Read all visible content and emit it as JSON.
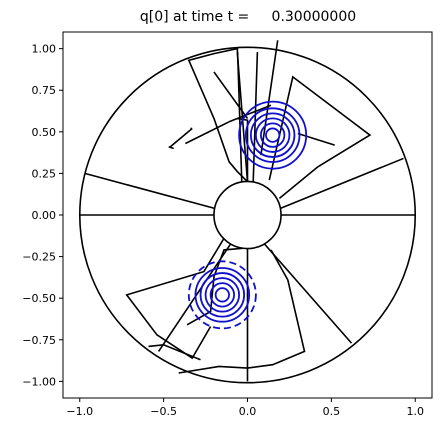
{
  "chart_data": {
    "type": "contour",
    "title": "q[0] at time t =     0.30000000",
    "xlabel": "",
    "ylabel": "",
    "xlim": [
      -1.1,
      1.1
    ],
    "ylim": [
      -1.1,
      1.1
    ],
    "grid": false,
    "x_ticks": [
      -1.0,
      -0.5,
      0.0,
      0.5,
      1.0
    ],
    "x_tick_labels": [
      "−1.0",
      "−0.5",
      "0.0",
      "0.5",
      "1.0"
    ],
    "y_ticks": [
      1.0,
      0.75,
      0.5,
      0.25,
      0.0,
      -0.25,
      -0.5,
      -0.75,
      -1.0
    ],
    "y_tick_labels": [
      "1.00",
      "0.75",
      "0.50",
      "0.25",
      "0.00",
      "−0.25",
      "−0.50",
      "−0.75",
      "−1.00"
    ],
    "annulus": {
      "inner_radius": 0.2,
      "outer_radius": 1.0
    },
    "mesh_edges": [
      {
        "from": [
          0.2,
          0.0
        ],
        "to": [
          1.0,
          0.0
        ]
      },
      {
        "from": [
          -0.2,
          0.0
        ],
        "to": [
          -1.0,
          0.0
        ]
      },
      {
        "from": [
          0.0,
          -0.2
        ],
        "to": [
          0.0,
          -1.0
        ]
      },
      {
        "from": [
          0.034,
          0.197
        ],
        "to": [
          0.059,
          0.98
        ]
      },
      {
        "from": [
          -0.034,
          0.197
        ],
        "to": [
          -0.059,
          0.98
        ]
      },
      {
        "from": [
          0.196,
          0.04
        ],
        "to": [
          0.93,
          0.34
        ]
      },
      {
        "from": [
          -0.196,
          0.04
        ],
        "to": [
          -0.97,
          0.25
        ]
      },
      {
        "from": [
          0.1,
          -0.173
        ],
        "to": [
          0.62,
          -0.77
        ]
      },
      {
        "from": [
          -0.1,
          -0.173
        ],
        "to": [
          -0.53,
          -0.82
        ]
      },
      {
        "from": [
          0.08,
          0.36
        ],
        "to": [
          0.18,
          1.05
        ]
      },
      {
        "from": [
          -0.34,
          0.52
        ],
        "to": [
          -0.33,
          0.52
        ]
      },
      {
        "from": [
          0.0,
          0.58
        ],
        "to": [
          -0.2,
          0.86
        ]
      },
      {
        "from": [
          -0.33,
          0.52
        ],
        "to": [
          -0.46,
          0.41
        ]
      },
      {
        "from": [
          -0.47,
          0.41
        ],
        "to": [
          -0.44,
          0.4
        ]
      },
      {
        "from": [
          0.3,
          0.49
        ],
        "to": [
          0.52,
          0.42
        ]
      }
    ],
    "mesh_polylines": [
      [
        [
          0.0,
          0.2
        ],
        [
          -0.06,
          0.97
        ],
        [
          -0.06,
          1.0
        ],
        [
          -0.2,
          0.97
        ],
        [
          -0.35,
          0.93
        ],
        [
          -0.2,
          0.58
        ],
        [
          -0.11,
          0.32
        ],
        [
          -0.06,
          0.26
        ],
        [
          0.0,
          0.2
        ]
      ],
      [
        [
          0.0,
          0.2
        ],
        [
          0.0,
          0.57
        ],
        [
          -0.06,
          0.58
        ]
      ],
      [
        [
          0.13,
          0.21
        ],
        [
          0.27,
          0.83
        ],
        [
          0.73,
          0.48
        ],
        [
          0.42,
          0.29
        ],
        [
          0.19,
          0.1
        ]
      ],
      [
        [
          -0.11,
          0.56
        ],
        [
          0.14,
          0.66
        ]
      ],
      [
        [
          -0.37,
          0.43
        ],
        [
          -0.11,
          0.56
        ]
      ],
      [
        [
          -0.14,
          -0.14
        ],
        [
          -0.26,
          -0.34
        ],
        [
          -0.72,
          -0.48
        ],
        [
          -0.54,
          -0.72
        ],
        [
          -0.33,
          -0.86
        ],
        [
          -0.22,
          -0.67
        ]
      ],
      [
        [
          -0.36,
          -0.66
        ],
        [
          -0.22,
          -0.58
        ],
        [
          -0.2,
          -0.37
        ],
        [
          -0.14,
          -0.21
        ],
        [
          -0.03,
          -0.2
        ]
      ],
      [
        [
          0.14,
          -0.21
        ],
        [
          0.24,
          -0.39
        ],
        [
          0.34,
          -0.82
        ],
        [
          0.15,
          -0.9
        ],
        [
          0.0,
          -0.92
        ],
        [
          -0.17,
          -0.91
        ],
        [
          -0.41,
          -0.95
        ]
      ],
      [
        [
          -0.59,
          -0.79
        ],
        [
          -0.5,
          -0.78
        ],
        [
          -0.28,
          -0.87
        ]
      ]
    ],
    "contours": [
      {
        "center": [
          0.15,
          0.48
        ],
        "radii": [
          0.04,
          0.07,
          0.1,
          0.13,
          0.16,
          0.2
        ],
        "style": "solid"
      },
      {
        "center": [
          -0.15,
          -0.48
        ],
        "radii": [
          0.04,
          0.07,
          0.1,
          0.13,
          0.16
        ],
        "style": "solid"
      },
      {
        "center": [
          -0.15,
          -0.48
        ],
        "radii": [
          0.2
        ],
        "style": "dashed"
      }
    ],
    "colors": {
      "mesh": "#000000",
      "contours": "#1010cc",
      "background": "#ffffff"
    }
  }
}
